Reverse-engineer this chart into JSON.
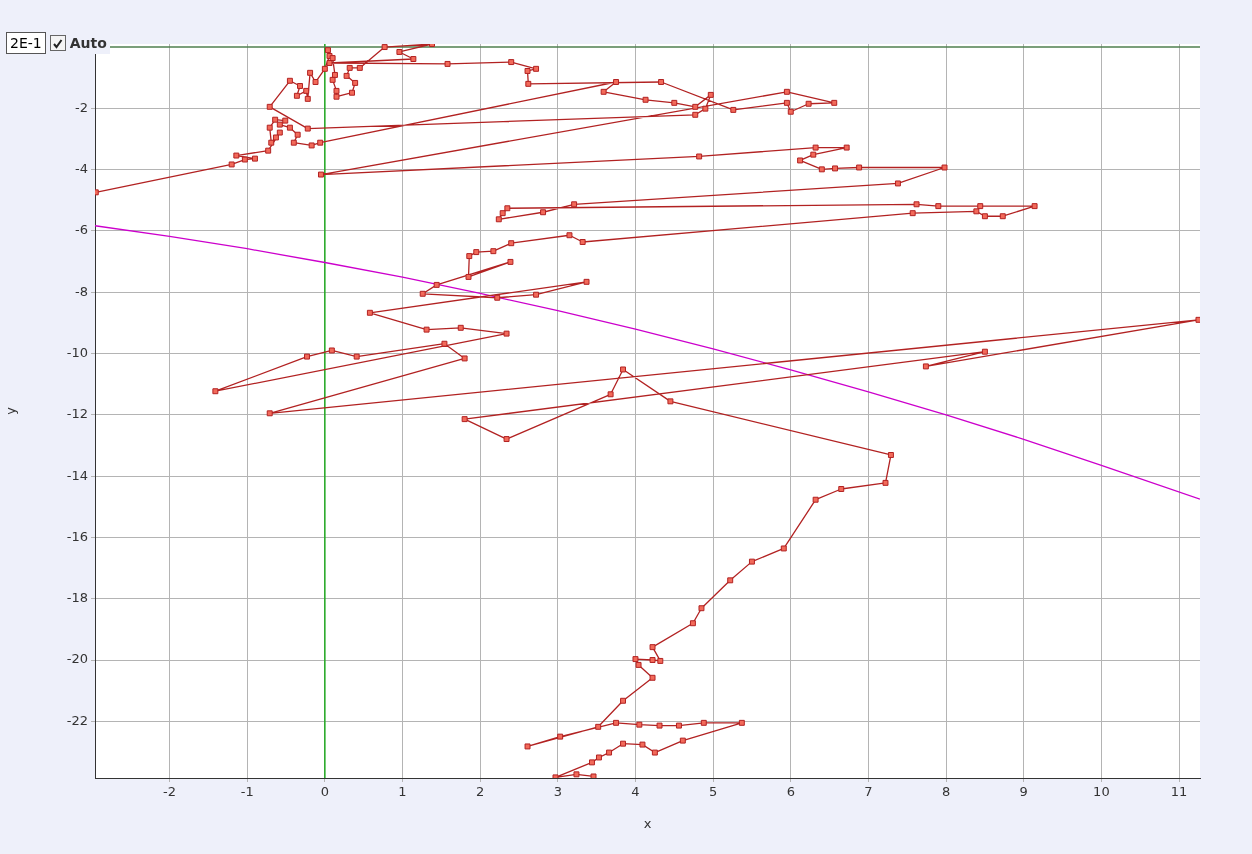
{
  "chart_data": {
    "type": "line",
    "xlabel": "x",
    "ylabel": "y",
    "xlim": [
      -2.96,
      11.27
    ],
    "ylim": [
      -23.85,
      0.1
    ],
    "xticks": [
      -2,
      -1,
      0,
      1,
      2,
      3,
      4,
      5,
      6,
      7,
      8,
      9,
      10,
      11
    ],
    "yticks": [
      -22,
      -20,
      -18,
      -16,
      -14,
      -12,
      -10,
      -8,
      -6,
      -4,
      -2
    ],
    "grid": true,
    "legend": false,
    "annotations": [
      "2E-1",
      "Auto"
    ],
    "ref_lines": [
      {
        "axis": "x",
        "value": 0,
        "color": "#22aa22"
      },
      {
        "axis": "y",
        "value": 0,
        "color": "#4f7f4f"
      }
    ],
    "series": [
      {
        "type": "line",
        "color": "#b22222",
        "marker": "square",
        "line_style": "solid",
        "x": [
          -2.95,
          -1.2,
          -1.03,
          -0.9,
          -1.14,
          -0.73,
          -0.58,
          -0.63,
          -0.69,
          -0.71,
          -0.64,
          -0.51,
          -0.58,
          -0.45,
          -0.35,
          -0.4,
          -0.17,
          -0.06,
          3.75,
          3.59,
          4.13,
          4.5,
          4.77,
          4.97,
          4.9,
          4.77,
          -0.22,
          -0.71,
          -0.45,
          -0.32,
          -0.36,
          -0.24,
          -0.22,
          -0.19,
          -0.12,
          0.0,
          0.06,
          0.04,
          0.1,
          0.13,
          0.1,
          0.15,
          0.15,
          0.35,
          0.39,
          0.28,
          0.32,
          0.45,
          0.77,
          1.38,
          0.96,
          1.14,
          0.06,
          1.58,
          2.4,
          2.72,
          2.61,
          2.62,
          4.33,
          5.26,
          5.95,
          6.0,
          6.23,
          6.56,
          5.95,
          -0.05,
          4.82,
          6.32,
          6.72,
          6.29,
          6.12,
          6.4,
          6.57,
          6.88,
          7.98,
          7.38,
          3.21,
          2.81,
          2.24,
          2.29,
          2.35,
          7.62,
          7.9,
          8.44,
          9.14,
          8.73,
          8.5,
          8.39,
          7.57,
          3.32,
          3.15,
          2.4,
          2.17,
          1.95,
          1.86,
          1.85,
          2.39,
          1.44,
          1.26,
          2.22,
          2.72,
          3.37,
          0.58,
          1.31,
          1.75,
          2.34,
          -1.41,
          -0.23,
          0.09,
          0.41,
          1.54,
          1.8,
          -0.71,
          11.25,
          7.74,
          8.5,
          1.8,
          2.34,
          3.68,
          3.84,
          4.45,
          7.29,
          7.22,
          6.65,
          6.32,
          5.91,
          5.5,
          5.22,
          4.85,
          4.74,
          4.22,
          4.32,
          4.22,
          4.0,
          4.04,
          4.22,
          3.84,
          3.52,
          2.61,
          3.03,
          3.75,
          4.05,
          4.31,
          4.56,
          4.88,
          5.37,
          4.61,
          4.25,
          4.09,
          3.84,
          3.66,
          3.53,
          3.44,
          2.97,
          3.24,
          3.46
        ],
        "values": [
          -4.74,
          -3.83,
          -3.67,
          -3.64,
          -3.54,
          -3.38,
          -2.79,
          -2.95,
          -3.12,
          -2.63,
          -2.37,
          -2.4,
          -2.53,
          -2.63,
          -2.86,
          -3.12,
          -3.21,
          -3.12,
          -1.14,
          -1.46,
          -1.72,
          -1.82,
          -1.95,
          -1.56,
          -2.01,
          -2.21,
          -2.66,
          -1.95,
          -1.1,
          -1.27,
          -1.59,
          -1.43,
          -1.69,
          -0.84,
          -1.14,
          -0.71,
          -0.29,
          -0.1,
          -0.36,
          -0.91,
          -1.07,
          -1.43,
          -1.62,
          -1.49,
          -1.17,
          -0.94,
          -0.68,
          -0.68,
          0.0,
          0.1,
          -0.16,
          -0.39,
          -0.52,
          -0.55,
          -0.49,
          -0.71,
          -0.78,
          -1.2,
          -1.14,
          -2.05,
          -1.82,
          -2.11,
          -1.85,
          -1.82,
          -1.46,
          -4.16,
          -3.57,
          -3.28,
          -3.28,
          -3.51,
          -3.7,
          -3.99,
          -3.96,
          -3.93,
          -3.93,
          -4.45,
          -5.13,
          -5.39,
          -5.62,
          -5.42,
          -5.26,
          -5.13,
          -5.19,
          -5.19,
          -5.19,
          -5.52,
          -5.52,
          -5.36,
          -5.42,
          -6.36,
          -6.14,
          -6.4,
          -6.66,
          -6.69,
          -6.82,
          -7.5,
          -7.01,
          -7.76,
          -8.05,
          -8.18,
          -8.08,
          -7.66,
          -8.67,
          -9.22,
          -9.16,
          -9.35,
          -11.23,
          -10.1,
          -9.9,
          -10.1,
          -9.68,
          -10.16,
          -11.95,
          -8.9,
          -10.42,
          -9.94,
          -12.14,
          -12.79,
          -11.33,
          -10.52,
          -11.56,
          -13.31,
          -14.22,
          -14.42,
          -14.77,
          -16.36,
          -16.79,
          -17.4,
          -18.31,
          -18.8,
          -19.58,
          -20.03,
          -20.0,
          -19.97,
          -20.16,
          -20.58,
          -21.33,
          -22.18,
          -22.82,
          -22.5,
          -22.05,
          -22.11,
          -22.14,
          -22.14,
          -22.05,
          -22.05,
          -22.63,
          -23.02,
          -22.76,
          -22.73,
          -23.02,
          -23.18,
          -23.34,
          -23.83,
          -23.73,
          -23.8
        ]
      },
      {
        "type": "line",
        "color": "#cc00cc",
        "marker": "none",
        "line_style": "solid",
        "x": [
          -2.96,
          -2,
          -1,
          0,
          1,
          2,
          3,
          4,
          5,
          6,
          7,
          8,
          9,
          10,
          11.27
        ],
        "values": [
          -5.83,
          -6.18,
          -6.58,
          -7.03,
          -7.51,
          -8.04,
          -8.6,
          -9.2,
          -9.85,
          -10.53,
          -11.25,
          -12.0,
          -12.8,
          -13.65,
          -14.75
        ]
      }
    ]
  }
}
